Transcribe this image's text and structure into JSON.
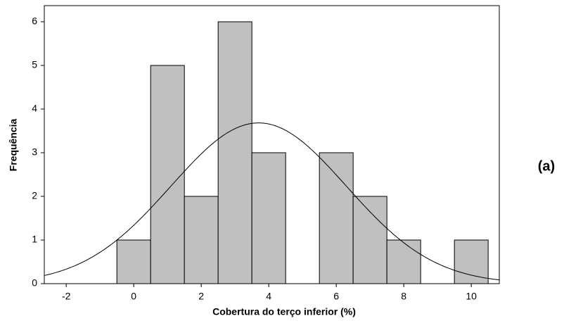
{
  "chart_data": {
    "type": "histogram",
    "x_label": "Cobertura do terço inferior (%)",
    "y_label": "Frequência",
    "annotation": "(a)",
    "bins": [
      -0.5,
      0.5,
      1.5,
      2.5,
      3.5,
      4.5,
      5.5,
      6.5,
      7.5,
      8.5,
      9.5,
      10.5
    ],
    "values": [
      1,
      5,
      2,
      6,
      3,
      0,
      3,
      2,
      1,
      0,
      1
    ],
    "color": "#c0c0c0",
    "fit": {
      "mean": 3.7,
      "sd": 2.6
    },
    "xlim": [
      -2.65,
      10.83
    ],
    "ylim": [
      0,
      6.37
    ],
    "xticks": [
      -2,
      0,
      2,
      4,
      6,
      8,
      10
    ],
    "yticks": [
      0,
      1,
      2,
      3,
      4,
      5,
      6
    ]
  }
}
